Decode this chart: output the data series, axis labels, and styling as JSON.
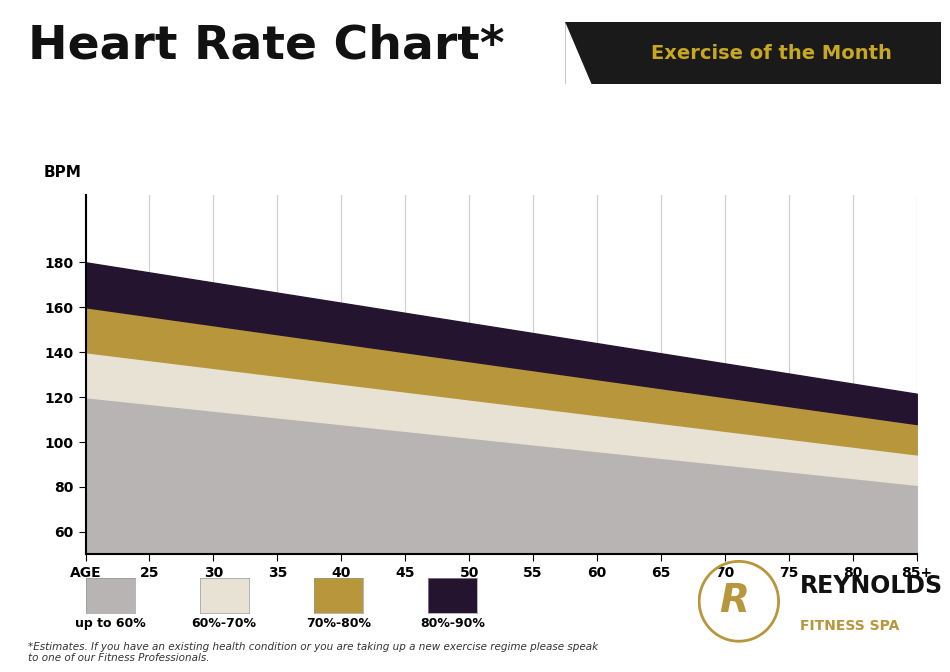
{
  "title": "Heart Rate Chart*",
  "subtitle": "Exercise of the Month",
  "bpm_label": "BPM",
  "age_values": [
    20,
    25,
    30,
    35,
    40,
    45,
    50,
    55,
    60,
    65,
    70,
    75,
    80,
    85
  ],
  "age_tick_labels": [
    "AGE",
    "25",
    "30",
    "35",
    "40",
    "45",
    "50",
    "55",
    "60",
    "65",
    "70",
    "75",
    "80",
    "85+"
  ],
  "pct_60": 0.6,
  "pct_70": 0.7,
  "pct_80": 0.8,
  "pct_90": 0.9,
  "color_60": "#b8b4b4",
  "color_70": "#e8e2d5",
  "color_80": "#b8963c",
  "color_90": "#251430",
  "legend_labels": [
    "up to 60%",
    "60%-70%",
    "70%-80%",
    "80%-90%"
  ],
  "ylim_min": 50,
  "ylim_max": 210,
  "yticks": [
    60,
    80,
    100,
    120,
    140,
    160,
    180
  ],
  "bg_color": "#ffffff",
  "subtitle_bg": "#1a1a1a",
  "subtitle_color": "#c8a820",
  "footnote": "*Estimates. If you have an existing health condition or you are taking up a new exercise regime please speak\nto one of our Fitness Professionals.",
  "grid_color": "#d0d0d0",
  "gold_color": "#b8963c"
}
